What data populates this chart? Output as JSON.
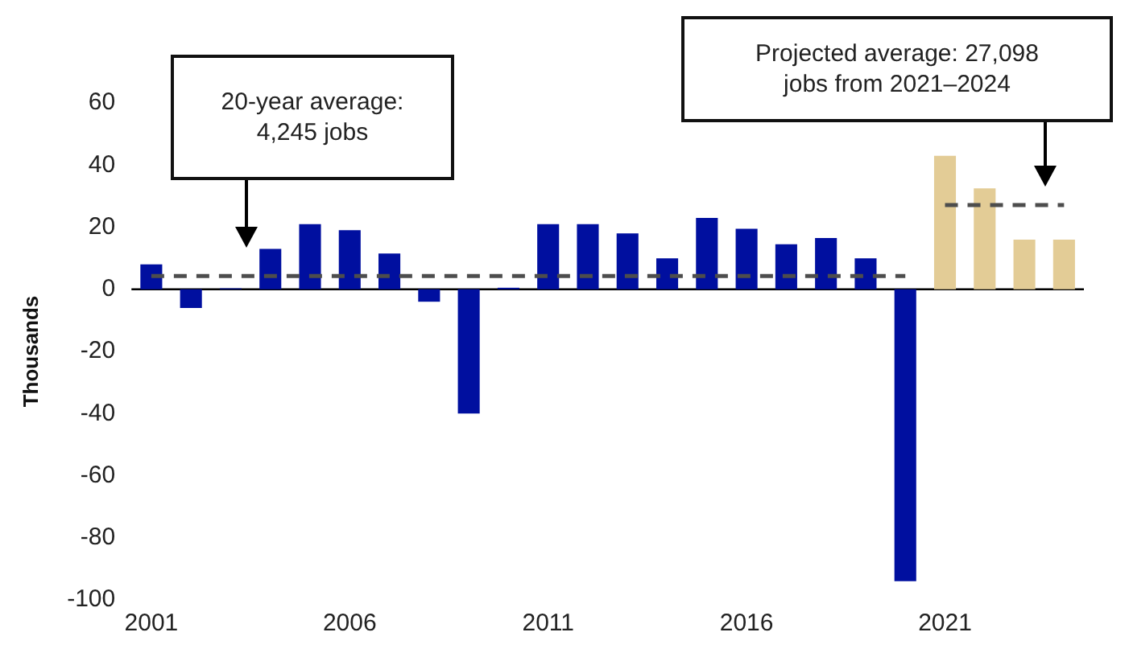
{
  "chart_data": {
    "type": "bar",
    "ylabel": "Thousands",
    "categories": [
      "2001",
      null,
      null,
      null,
      null,
      "2006",
      null,
      null,
      null,
      null,
      "2011",
      null,
      null,
      null,
      null,
      "2016",
      null,
      null,
      null,
      null,
      "2021",
      null,
      null,
      null
    ],
    "series": [
      {
        "colors": [
          "#000f9f",
          "#000f9f",
          "#000f9f",
          "#000f9f",
          "#000f9f",
          "#000f9f",
          "#000f9f",
          "#000f9f",
          "#000f9f",
          "#000f9f",
          "#000f9f",
          "#000f9f",
          "#000f9f",
          "#000f9f",
          "#000f9f",
          "#000f9f",
          "#000f9f",
          "#000f9f",
          "#000f9f",
          "#000f9f",
          "#e3cc96",
          "#e3cc96",
          "#e3cc96",
          "#e3cc96"
        ],
        "values": [
          8,
          -6,
          0.3,
          13,
          21,
          19,
          11.5,
          -4,
          -40,
          0.5,
          21,
          21,
          18,
          10,
          23,
          19.5,
          14.5,
          16.5,
          10,
          -94,
          43,
          32.5,
          16,
          16
        ]
      },
      {
        "type": "line",
        "color": "#4d4d4d",
        "values": [
          4.245,
          4.245,
          4.245,
          4.245,
          4.245,
          4.245,
          4.245,
          4.245,
          4.245,
          4.245,
          4.245,
          4.245,
          4.245,
          4.245,
          4.245,
          4.245,
          4.245,
          4.245,
          4.245,
          4.245,
          null,
          null,
          null,
          null
        ]
      },
      {
        "type": "line",
        "color": "#4d4d4d",
        "values": [
          null,
          null,
          null,
          null,
          null,
          null,
          null,
          null,
          null,
          null,
          null,
          null,
          null,
          null,
          null,
          null,
          null,
          null,
          null,
          null,
          27.098,
          27.098,
          27.098,
          27.098
        ]
      }
    ],
    "ylim": [
      -100,
      60
    ],
    "yticks": [
      -100,
      -80,
      -60,
      -40,
      -20,
      0,
      20,
      40,
      60
    ],
    "ref_lines": [
      {
        "axis": "y",
        "value": 0,
        "color": "#000000",
        "line_style": "solid"
      }
    ],
    "grid": false,
    "legend": false,
    "marker": "none",
    "line_style": "dashed",
    "annotations": [
      "20-year average:\n4,245 jobs",
      "Projected average: 27,098\njobs from 2021–2024"
    ]
  }
}
